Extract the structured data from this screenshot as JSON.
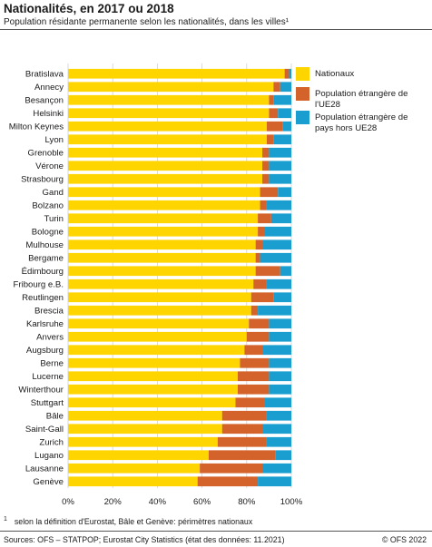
{
  "header": {
    "title": "Nationalités, en 2017 ou 2018",
    "subtitle": "Population résidante permanente selon les nationalités, dans les villes¹"
  },
  "footer": {
    "footnote_mark": "1",
    "footnote": "selon la définition d'Eurostat, Bâle et Genève: périmètres nationaux",
    "source": "Sources: OFS – STATPOP; Eurostat City Statistics (état des données: 11.2021)",
    "copyright": "© OFS 2022"
  },
  "chart_data": {
    "type": "bar",
    "orientation": "horizontal",
    "stacked": true,
    "categories": [
      "Bratislava",
      "Annecy",
      "Besançon",
      "Helsinki",
      "Milton Keynes",
      "Lyon",
      "Grenoble",
      "Vérone",
      "Strasbourg",
      "Gand",
      "Bolzano",
      "Turin",
      "Bologne",
      "Mulhouse",
      "Bergame",
      "Édimbourg",
      "Fribourg e.B.",
      "Reutlingen",
      "Brescia",
      "Karlsruhe",
      "Anvers",
      "Augsburg",
      "Berne",
      "Lucerne",
      "Winterthour",
      "Stuttgart",
      "Bâle",
      "Saint-Gall",
      "Zurich",
      "Lugano",
      "Lausanne",
      "Genève"
    ],
    "series": [
      {
        "name": "Nationaux",
        "color": "#ffd500",
        "values": [
          97,
          92,
          90,
          90,
          89,
          89,
          87,
          87,
          87,
          86,
          86,
          85,
          85,
          84,
          84,
          84,
          83,
          82,
          82,
          81,
          80,
          79,
          77,
          76,
          76,
          75,
          69,
          69,
          67,
          63,
          59,
          58
        ]
      },
      {
        "name": "Population étrangère de l'UE28",
        "color": "#d4622b",
        "values": [
          2,
          3,
          2,
          4,
          7,
          3,
          3,
          3,
          3,
          8,
          3,
          6,
          3,
          3,
          2,
          11,
          6,
          10,
          3,
          9,
          10,
          8,
          13,
          14,
          14,
          13,
          20,
          18,
          22,
          30,
          28,
          27
        ]
      },
      {
        "name": "Population étrangère de pays hors UE28",
        "color": "#1a9ed0",
        "values": [
          1,
          5,
          8,
          6,
          4,
          8,
          10,
          10,
          10,
          6,
          11,
          9,
          12,
          13,
          14,
          5,
          11,
          8,
          15,
          10,
          10,
          13,
          10,
          10,
          10,
          12,
          11,
          13,
          11,
          7,
          13,
          15
        ]
      }
    ],
    "legend": [
      {
        "label_lines": [
          "Nationaux"
        ],
        "color": "#ffd500"
      },
      {
        "label_lines": [
          "Population étrangère de",
          "l'UE28"
        ],
        "color": "#d4622b"
      },
      {
        "label_lines": [
          "Population étrangère de",
          "pays hors UE28"
        ],
        "color": "#1a9ed0"
      }
    ],
    "xlim": [
      0,
      100
    ],
    "x_ticks": [
      0,
      20,
      40,
      60,
      80,
      100
    ],
    "x_tick_labels": [
      "0%",
      "20%",
      "40%",
      "60%",
      "80%",
      "100%"
    ],
    "grid": true,
    "legend_position": "top-right"
  }
}
